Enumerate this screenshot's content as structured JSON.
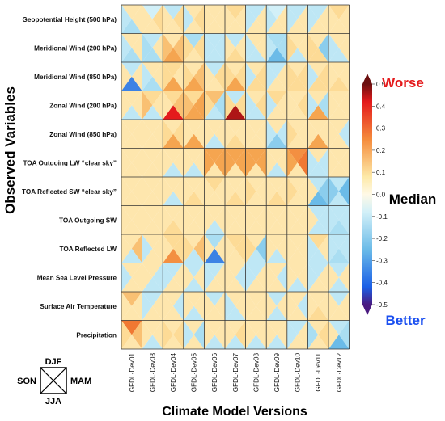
{
  "chart_data": {
    "type": "heatmap",
    "subtype": "seasonal-quad",
    "xlabel": "Climate Model Versions",
    "ylabel": "Observed Variables",
    "columns": [
      "GFDL-Dev01",
      "GFDL-Dev03",
      "GFDL-Dev04",
      "GFDL-Dev05",
      "GFDL-Dev06",
      "GFDL-Dev07",
      "GFDL-Dev08",
      "GFDL-Dev09",
      "GFDL-Dev10",
      "GFDL-Dev11",
      "GFDL-Dev12"
    ],
    "rows": [
      "Geopotential Height (500 hPa)",
      "Meridional Wind (200 hPa)",
      "Meridional Wind (850 hPa)",
      "Zonal Wind (200 hPa)",
      "Zonal Wind (850 hPa)",
      "TOA Outgoing LW “clear sky”",
      "TOA Reflected SW “clear sky”",
      "TOA Outgoing SW",
      "TOA Reflected LW",
      "Mean Sea Level Pressure",
      "Surface Air Temperature",
      "Precipitation"
    ],
    "season_order": [
      "DJF",
      "MAM",
      "JJA",
      "SON"
    ],
    "values": [
      [
        [
          0.05,
          0.05,
          -0.1,
          -0.05
        ],
        [
          0.0,
          0.1,
          0.05,
          0.05
        ],
        [
          -0.05,
          0.1,
          0.05,
          0.05
        ],
        [
          0.05,
          0.1,
          0.05,
          -0.05
        ],
        [
          0.05,
          0.05,
          0.05,
          0.05
        ],
        [
          0.1,
          0.05,
          0.05,
          0.05
        ],
        [
          -0.05,
          0.05,
          0.05,
          -0.05
        ],
        [
          0.0,
          0.05,
          0.05,
          -0.05
        ],
        [
          -0.05,
          0.05,
          0.05,
          -0.05
        ],
        [
          -0.05,
          0.05,
          0.05,
          -0.05
        ],
        [
          0.1,
          0.05,
          0.05,
          0.05
        ]
      ],
      [
        [
          0.05,
          0.05,
          -0.1,
          -0.05
        ],
        [
          -0.05,
          0.05,
          -0.1,
          -0.1
        ],
        [
          0.05,
          0.15,
          0.2,
          0.15
        ],
        [
          -0.1,
          0.1,
          0.05,
          0.1
        ],
        [
          -0.05,
          -0.05,
          -0.05,
          -0.05
        ],
        [
          -0.05,
          0.05,
          0.1,
          0.05
        ],
        [
          0.05,
          0.05,
          -0.05,
          -0.05
        ],
        [
          -0.1,
          -0.1,
          -0.2,
          -0.05
        ],
        [
          0.05,
          0.05,
          -0.05,
          0.1
        ],
        [
          0.05,
          -0.15,
          0.1,
          0.1
        ],
        [
          0.05,
          0.05,
          -0.05,
          -0.05
        ]
      ],
      [
        [
          -0.05,
          0.05,
          -0.3,
          0.05
        ],
        [
          0.05,
          0.05,
          -0.1,
          -0.05
        ],
        [
          0.1,
          0.05,
          0.2,
          0.1
        ],
        [
          0.05,
          0.15,
          0.2,
          0.1
        ],
        [
          -0.05,
          0.1,
          0.05,
          0.05
        ],
        [
          0.05,
          0.1,
          0.2,
          0.1
        ],
        [
          0.05,
          0.1,
          0.1,
          -0.05
        ],
        [
          -0.05,
          0.05,
          0.05,
          -0.05
        ],
        [
          0.05,
          0.1,
          0.1,
          0.1
        ],
        [
          0.05,
          0.1,
          0.1,
          -0.05
        ],
        [
          0.05,
          0.05,
          0.1,
          0.05
        ]
      ],
      [
        [
          0.05,
          0.05,
          -0.05,
          0.05
        ],
        [
          0.1,
          0.05,
          -0.05,
          0.15
        ],
        [
          0.1,
          0.15,
          0.4,
          0.05
        ],
        [
          0.1,
          0.2,
          0.2,
          0.15
        ],
        [
          0.15,
          -0.1,
          -0.05,
          0.1
        ],
        [
          -0.05,
          0.1,
          0.45,
          0.1
        ],
        [
          0.05,
          0.1,
          -0.05,
          -0.05
        ],
        [
          0.1,
          0.05,
          0.05,
          -0.05
        ],
        [
          0.05,
          0.1,
          0.05,
          0.05
        ],
        [
          0.05,
          -0.1,
          0.2,
          -0.05
        ],
        [
          0.05,
          0.05,
          0.05,
          0.05
        ]
      ],
      [
        [
          0.05,
          0.05,
          0.05,
          0.05
        ],
        [
          0.05,
          0.05,
          0.05,
          0.05
        ],
        [
          0.05,
          0.1,
          0.2,
          0.1
        ],
        [
          0.05,
          0.05,
          0.2,
          0.05
        ],
        [
          0.05,
          0.05,
          -0.05,
          0.05
        ],
        [
          0.05,
          0.05,
          0.1,
          0.05
        ],
        [
          0.05,
          0.05,
          0.05,
          0.05
        ],
        [
          0.05,
          -0.05,
          -0.15,
          -0.05
        ],
        [
          0.05,
          0.05,
          0.05,
          0.1
        ],
        [
          0.05,
          0.05,
          0.2,
          0.05
        ],
        [
          0.05,
          -0.05,
          0.05,
          0.05
        ]
      ],
      [
        [
          0.05,
          0.05,
          0.05,
          0.05
        ],
        [
          0.05,
          0.05,
          0.05,
          0.05
        ],
        [
          0.05,
          0.05,
          -0.05,
          0.05
        ],
        [
          0.05,
          0.05,
          -0.05,
          0.05
        ],
        [
          0.2,
          0.2,
          0.05,
          0.2
        ],
        [
          0.2,
          0.2,
          0.05,
          0.2
        ],
        [
          0.2,
          0.2,
          0.05,
          0.2
        ],
        [
          0.05,
          0.05,
          -0.05,
          0.05
        ],
        [
          0.25,
          0.3,
          0.05,
          0.2
        ],
        [
          0.05,
          -0.05,
          -0.05,
          -0.05
        ],
        [
          0.05,
          0.05,
          0.05,
          0.05
        ]
      ],
      [
        [
          0.05,
          0.05,
          0.05,
          0.05
        ],
        [
          0.05,
          0.05,
          0.05,
          0.05
        ],
        [
          0.05,
          0.05,
          -0.05,
          0.05
        ],
        [
          0.05,
          0.05,
          0.1,
          0.05
        ],
        [
          0.1,
          0.05,
          0.05,
          0.05
        ],
        [
          0.05,
          0.05,
          0.1,
          0.05
        ],
        [
          0.05,
          0.05,
          0.05,
          0.1
        ],
        [
          0.05,
          0.05,
          0.1,
          0.05
        ],
        [
          0.05,
          0.05,
          0.05,
          0.1
        ],
        [
          -0.05,
          -0.15,
          -0.2,
          0.05
        ],
        [
          -0.05,
          -0.2,
          -0.05,
          -0.15
        ]
      ],
      [
        [
          0.05,
          0.05,
          0.05,
          0.05
        ],
        [
          0.05,
          0.05,
          0.05,
          0.05
        ],
        [
          0.05,
          0.05,
          0.1,
          0.05
        ],
        [
          0.05,
          0.05,
          0.05,
          0.05
        ],
        [
          0.05,
          0.05,
          -0.05,
          0.05
        ],
        [
          0.05,
          0.05,
          0.05,
          0.05
        ],
        [
          0.05,
          0.05,
          0.05,
          0.05
        ],
        [
          0.05,
          0.05,
          0.05,
          0.05
        ],
        [
          0.05,
          0.05,
          0.05,
          0.05
        ],
        [
          -0.05,
          -0.05,
          -0.05,
          0.05
        ],
        [
          -0.05,
          -0.05,
          -0.1,
          -0.05
        ]
      ],
      [
        [
          0.05,
          0.15,
          -0.05,
          0.05
        ],
        [
          0.05,
          0.05,
          0.05,
          -0.05
        ],
        [
          0.1,
          0.1,
          0.25,
          0.05
        ],
        [
          0.05,
          0.15,
          -0.05,
          0.1
        ],
        [
          -0.1,
          0.05,
          -0.3,
          0.05
        ],
        [
          0.1,
          0.1,
          0.05,
          0.05
        ],
        [
          0.05,
          -0.15,
          -0.05,
          0.1
        ],
        [
          0.05,
          0.05,
          -0.05,
          0.05
        ],
        [
          0.05,
          0.05,
          0.05,
          0.05
        ],
        [
          0.1,
          0.05,
          -0.05,
          -0.05
        ],
        [
          -0.05,
          -0.05,
          -0.1,
          -0.05
        ]
      ],
      [
        [
          0.05,
          0.05,
          0.05,
          -0.05
        ],
        [
          0.05,
          -0.05,
          -0.05,
          0.05
        ],
        [
          -0.05,
          0.05,
          0.05,
          -0.05
        ],
        [
          -0.05,
          0.05,
          -0.05,
          0.05
        ],
        [
          -0.05,
          0.05,
          0.05,
          -0.05
        ],
        [
          0.05,
          -0.05,
          0.05,
          0.05
        ],
        [
          -0.05,
          0.05,
          0.05,
          -0.05
        ],
        [
          0.05,
          -0.05,
          0.05,
          0.05
        ],
        [
          0.05,
          0.05,
          -0.05,
          0.05
        ],
        [
          -0.05,
          0.05,
          0.05,
          -0.05
        ],
        [
          -0.05,
          0.05,
          -0.05,
          0.05
        ]
      ],
      [
        [
          0.15,
          0.05,
          0.05,
          0.05
        ],
        [
          -0.05,
          0.05,
          0.05,
          -0.05
        ],
        [
          0.05,
          -0.05,
          0.05,
          0.05
        ],
        [
          0.05,
          0.05,
          -0.05,
          0.05
        ],
        [
          -0.05,
          0.05,
          0.05,
          0.05
        ],
        [
          0.05,
          0.05,
          -0.05,
          -0.05
        ],
        [
          0.05,
          0.05,
          0.05,
          0.05
        ],
        [
          -0.05,
          0.05,
          -0.05,
          0.05
        ],
        [
          0.05,
          -0.05,
          0.05,
          0.05
        ],
        [
          0.05,
          0.05,
          0.1,
          0.05
        ],
        [
          -0.05,
          0.05,
          0.05,
          0.05
        ]
      ],
      [
        [
          0.3,
          0.15,
          0.05,
          0.1
        ],
        [
          0.05,
          0.05,
          -0.05,
          0.05
        ],
        [
          0.05,
          0.1,
          0.05,
          0.1
        ],
        [
          0.05,
          -0.1,
          0.05,
          -0.05
        ],
        [
          0.05,
          0.05,
          -0.05,
          0.05
        ],
        [
          0.05,
          0.1,
          -0.05,
          0.05
        ],
        [
          0.05,
          0.05,
          -0.05,
          0.05
        ],
        [
          0.05,
          0.05,
          -0.05,
          0.05
        ],
        [
          -0.05,
          0.05,
          0.05,
          -0.05
        ],
        [
          0.05,
          0.1,
          0.05,
          -0.1
        ],
        [
          -0.05,
          -0.1,
          -0.2,
          0.05
        ]
      ]
    ],
    "colorbar": {
      "range": [
        -0.5,
        0.5
      ],
      "ticks": [
        "0.5",
        "0.4",
        "0.3",
        "0.2",
        "0.1",
        "0.0",
        "-0.1",
        "-0.2",
        "-0.3",
        "-0.4",
        "-0.5"
      ],
      "top_label": "Worse",
      "mid_label": "Median",
      "bottom_label": "Better",
      "top_color": "#e41a1c",
      "bottom_color": "#1a4ff0"
    },
    "season_key": {
      "top": "DJF",
      "right": "MAM",
      "bottom": "JJA",
      "left": "SON"
    }
  }
}
